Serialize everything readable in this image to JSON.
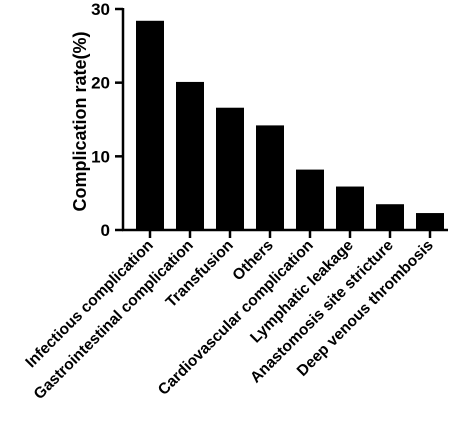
{
  "chart_data": {
    "type": "bar",
    "title": "",
    "xlabel": "",
    "ylabel": "Complication rate(%)",
    "ylim": [
      0,
      30
    ],
    "yticks": [
      0,
      10,
      20,
      30
    ],
    "categories": [
      "Infectious complication",
      "Gastrointestinal complication",
      "Transfusion",
      "Others",
      "Cardiovascular complication",
      "Lymphatic leakage",
      "Anastomosis site stricture",
      "Deep venous thrombosis"
    ],
    "values": [
      28.4,
      20.1,
      16.6,
      14.2,
      8.2,
      5.9,
      3.5,
      2.3
    ],
    "bar_color": "#000000",
    "grid": false,
    "legend": "none"
  }
}
